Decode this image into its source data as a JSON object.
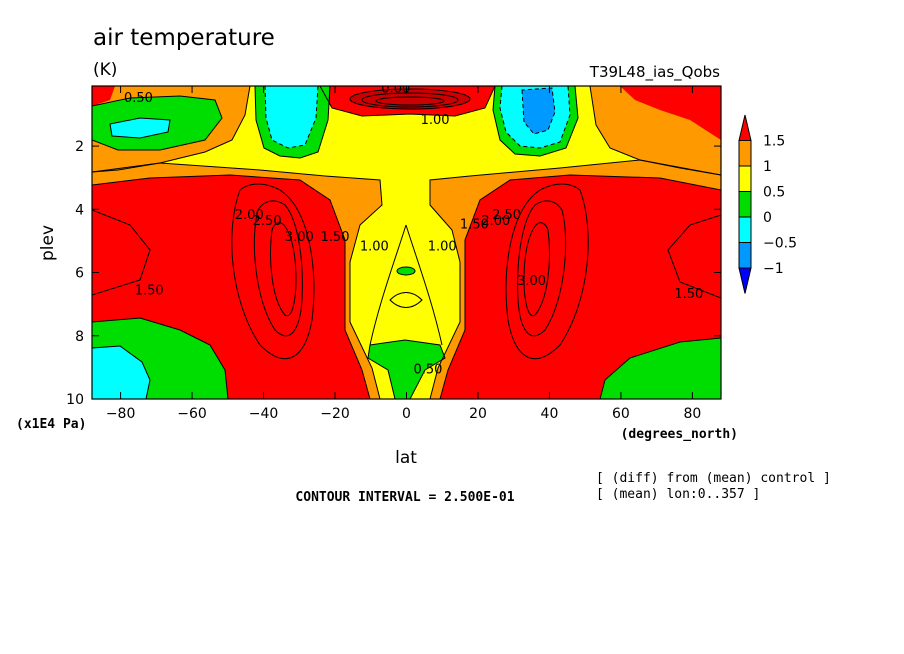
{
  "chart_data": {
    "type": "contour",
    "title": "air temperature",
    "units": "(K)",
    "experiment": "T39L48_ias_Qobs",
    "xlabel": "lat",
    "x_units": "(degrees_north)",
    "ylabel": "plev",
    "y_units": "(x1E4 Pa)",
    "xlim": [
      -88,
      88
    ],
    "ylim": [
      10,
      0.1
    ],
    "x_ticks": [
      -80,
      -60,
      -40,
      -20,
      0,
      20,
      40,
      60,
      80
    ],
    "y_ticks": [
      2,
      4,
      6,
      8,
      10
    ],
    "contour_interval": "CONTOUR INTERVAL = 2.500E-01",
    "info_lines": [
      "[ (diff) from (mean) control ]",
      "[ (mean) lon:0..357 ]"
    ],
    "colorbar": {
      "levels": [
        "1.5",
        "1",
        "0.5",
        "0",
        "−0.5",
        "−1"
      ],
      "colors": [
        "#ff0000",
        "#ff9900",
        "#ffff00",
        "#00dd00",
        "#00ffff",
        "#0099ff",
        "#0000ff"
      ]
    },
    "contour_labels": [
      {
        "text": "0.50",
        "lat": -75,
        "p": 0.6
      },
      {
        "text": "0.00",
        "lat": -3,
        "p": 0.3
      },
      {
        "text": "1.00",
        "lat": 8,
        "p": 1.3
      },
      {
        "text": "2.00",
        "lat": -44,
        "p": 4.3
      },
      {
        "text": "2.50",
        "lat": -39,
        "p": 4.5
      },
      {
        "text": "3.00",
        "lat": -30,
        "p": 5.0
      },
      {
        "text": "1.50",
        "lat": -20,
        "p": 5.0
      },
      {
        "text": "1.00",
        "lat": -9,
        "p": 5.3
      },
      {
        "text": "1.00",
        "lat": 10,
        "p": 5.3
      },
      {
        "text": "1.50",
        "lat": 19,
        "p": 4.6
      },
      {
        "text": "2.00",
        "lat": 25,
        "p": 4.5
      },
      {
        "text": "2.50",
        "lat": 28,
        "p": 4.3
      },
      {
        "text": "3.00",
        "lat": 35,
        "p": 6.4
      },
      {
        "text": "1.50",
        "lat": -72,
        "p": 6.7
      },
      {
        "text": "1.50",
        "lat": 79,
        "p": 6.8
      },
      {
        "text": "0.50",
        "lat": 6,
        "p": 9.2
      }
    ]
  }
}
